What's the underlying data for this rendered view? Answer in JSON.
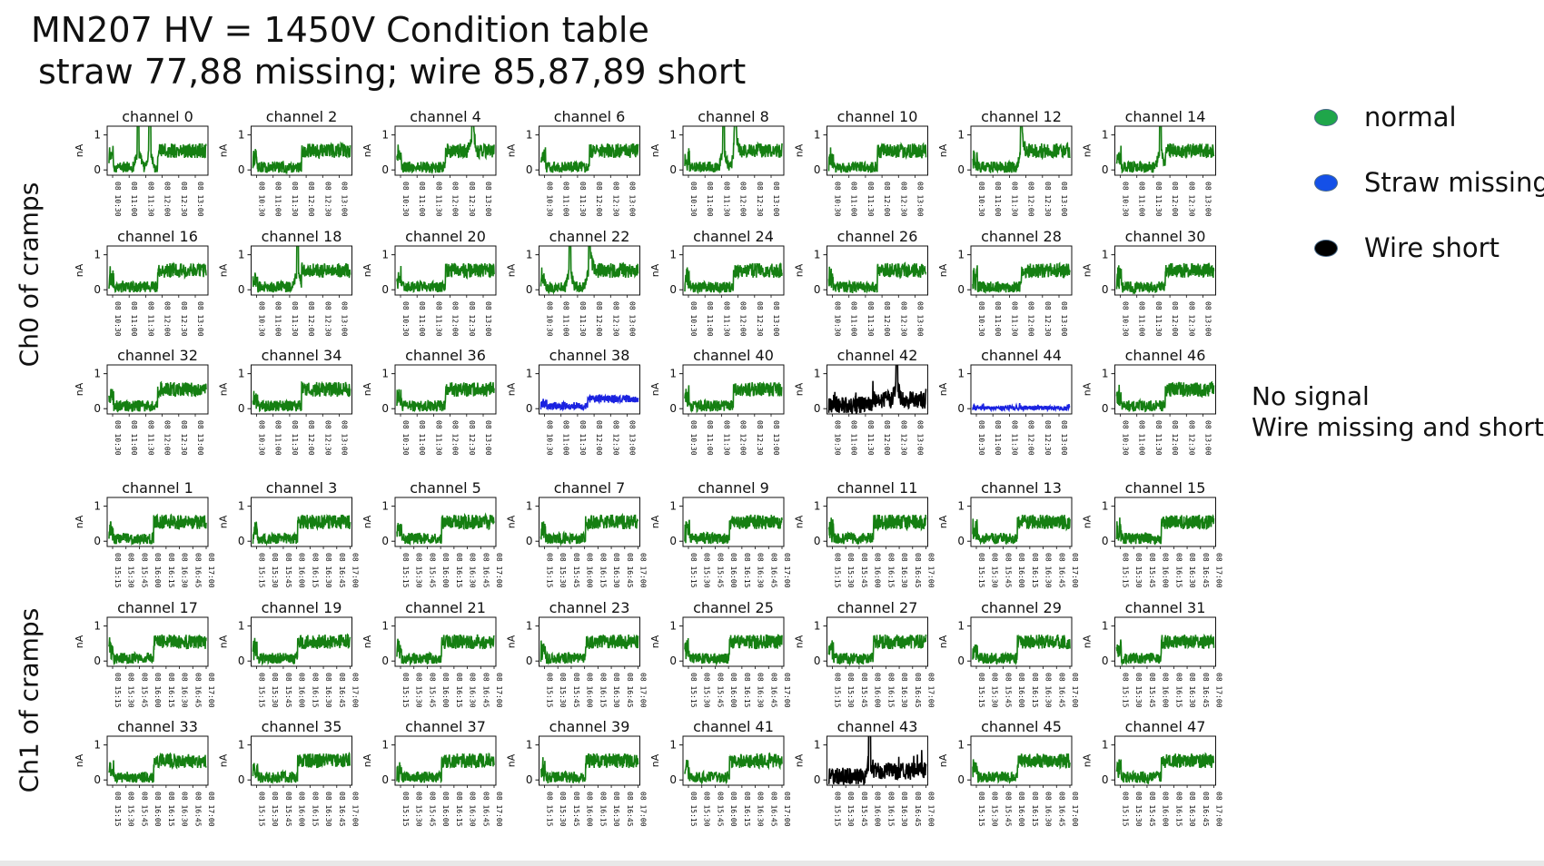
{
  "title_line1": "MN207 HV = 1450V Condition table",
  "title_line2": "straw 77,88 missing; wire 85,87,89 short",
  "group_labels": [
    "Ch0 of cramps",
    "Ch1 of cramps"
  ],
  "legend": [
    {
      "label": "normal",
      "color": "#1fa64a"
    },
    {
      "label": "Straw missing",
      "color": "#1450e8"
    },
    {
      "label": "Wire short",
      "color": "#000000"
    }
  ],
  "notes": [
    "No signal",
    "Wire missing and short"
  ],
  "colors": {
    "normal": "#157f12",
    "straw_missing": "#1a22e0",
    "wire_short": "#000000"
  },
  "chart_data": {
    "type": "line",
    "ylabel": "nA",
    "yticks": [
      "0",
      "1"
    ],
    "ylim": [
      -0.15,
      1.25
    ],
    "groups": [
      {
        "label": "Ch0 of cramps",
        "xticks": [
          "08 10:30",
          "08 11:00",
          "08 11:30",
          "08 12:00",
          "08 12:30",
          "08 13:00"
        ],
        "panels": [
          {
            "title": "channel 0",
            "status": "normal",
            "spikes": [
              0.3,
              0.42
            ]
          },
          {
            "title": "channel 2",
            "status": "normal",
            "spikes": []
          },
          {
            "title": "channel 4",
            "status": "normal",
            "spikes": [
              0.78
            ]
          },
          {
            "title": "channel 6",
            "status": "normal",
            "spikes": []
          },
          {
            "title": "channel 8",
            "status": "normal",
            "spikes": [
              0.4,
              0.52
            ]
          },
          {
            "title": "channel 10",
            "status": "normal",
            "spikes": []
          },
          {
            "title": "channel 12",
            "status": "normal",
            "spikes": [
              0.5
            ]
          },
          {
            "title": "channel 14",
            "status": "normal",
            "spikes": [
              0.45
            ]
          },
          {
            "title": "channel 16",
            "status": "normal",
            "spikes": []
          },
          {
            "title": "channel 18",
            "status": "normal",
            "spikes": [
              0.46
            ]
          },
          {
            "title": "channel 20",
            "status": "normal",
            "spikes": []
          },
          {
            "title": "channel 22",
            "status": "normal",
            "spikes": [
              0.3,
              0.5
            ]
          },
          {
            "title": "channel 24",
            "status": "normal",
            "spikes": []
          },
          {
            "title": "channel 26",
            "status": "normal",
            "spikes": []
          },
          {
            "title": "channel 28",
            "status": "normal",
            "spikes": []
          },
          {
            "title": "channel 30",
            "status": "normal",
            "spikes": []
          },
          {
            "title": "channel 32",
            "status": "normal",
            "spikes": []
          },
          {
            "title": "channel 34",
            "status": "normal",
            "spikes": []
          },
          {
            "title": "channel 36",
            "status": "normal",
            "spikes": []
          },
          {
            "title": "channel 38",
            "status": "straw_missing",
            "spikes": []
          },
          {
            "title": "channel 40",
            "status": "normal",
            "spikes": []
          },
          {
            "title": "channel 42",
            "status": "wire_short",
            "spikes": [
              0.7
            ]
          },
          {
            "title": "channel 44",
            "status": "straw_missing_flat",
            "spikes": []
          },
          {
            "title": "channel 46",
            "status": "normal",
            "spikes": []
          }
        ]
      },
      {
        "label": "Ch1 of cramps",
        "xticks": [
          "08 15:15",
          "08 15:30",
          "08 15:45",
          "08 16:00",
          "08 16:15",
          "08 16:30",
          "08 16:45",
          "08 17:00"
        ],
        "panels": [
          {
            "title": "channel 1",
            "status": "normal",
            "spikes": []
          },
          {
            "title": "channel 3",
            "status": "normal",
            "spikes": []
          },
          {
            "title": "channel 5",
            "status": "normal",
            "spikes": []
          },
          {
            "title": "channel 7",
            "status": "normal",
            "spikes": []
          },
          {
            "title": "channel 9",
            "status": "normal",
            "spikes": []
          },
          {
            "title": "channel 11",
            "status": "normal",
            "spikes": []
          },
          {
            "title": "channel 13",
            "status": "normal",
            "spikes": []
          },
          {
            "title": "channel 15",
            "status": "normal",
            "spikes": []
          },
          {
            "title": "channel 17",
            "status": "normal",
            "spikes": []
          },
          {
            "title": "channel 19",
            "status": "normal",
            "spikes": []
          },
          {
            "title": "channel 21",
            "status": "normal",
            "spikes": []
          },
          {
            "title": "channel 23",
            "status": "normal",
            "spikes": []
          },
          {
            "title": "channel 25",
            "status": "normal",
            "spikes": []
          },
          {
            "title": "channel 27",
            "status": "normal",
            "spikes": []
          },
          {
            "title": "channel 29",
            "status": "normal",
            "spikes": []
          },
          {
            "title": "channel 31",
            "status": "normal",
            "spikes": []
          },
          {
            "title": "channel 33",
            "status": "normal",
            "spikes": []
          },
          {
            "title": "channel 35",
            "status": "normal",
            "spikes": []
          },
          {
            "title": "channel 37",
            "status": "normal",
            "spikes": []
          },
          {
            "title": "channel 39",
            "status": "normal",
            "spikes": []
          },
          {
            "title": "channel 41",
            "status": "normal",
            "spikes": []
          },
          {
            "title": "channel 43",
            "status": "wire_short",
            "spikes": [
              0.42
            ]
          },
          {
            "title": "channel 45",
            "status": "normal",
            "spikes": []
          },
          {
            "title": "channel 47",
            "status": "normal",
            "spikes": []
          }
        ]
      }
    ]
  }
}
